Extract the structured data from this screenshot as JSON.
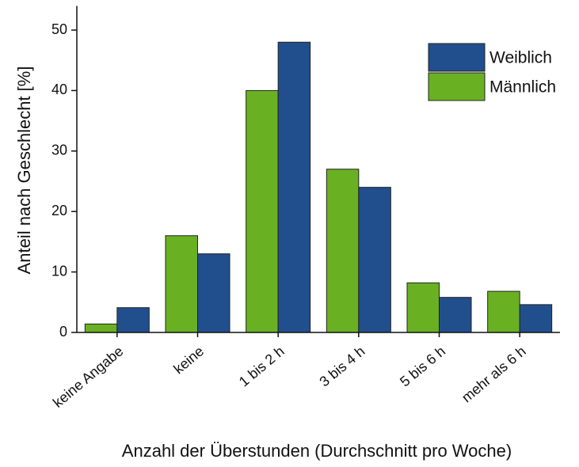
{
  "chart_data": {
    "type": "bar",
    "xlabel": "Anzahl der Überstunden (Durchschnitt pro Woche)",
    "ylabel": "Anteil nach Geschlecht [%]",
    "categories": [
      "keine Angabe",
      "keine",
      "1 bis 2 h",
      "3 bis 4 h",
      "5 bis 6 h",
      "mehr als 6 h"
    ],
    "series": [
      {
        "name": "Männlich",
        "color": "#6ab023",
        "values": [
          1.4,
          16,
          40,
          27,
          8.2,
          6.8
        ]
      },
      {
        "name": "Weiblich",
        "color": "#214f8d",
        "values": [
          4.1,
          13,
          48,
          24,
          5.8,
          4.6
        ]
      }
    ],
    "ylim": [
      0,
      54
    ],
    "yticks": [
      0,
      10,
      20,
      30,
      40,
      50
    ],
    "grid": false,
    "legend": "upper right"
  }
}
